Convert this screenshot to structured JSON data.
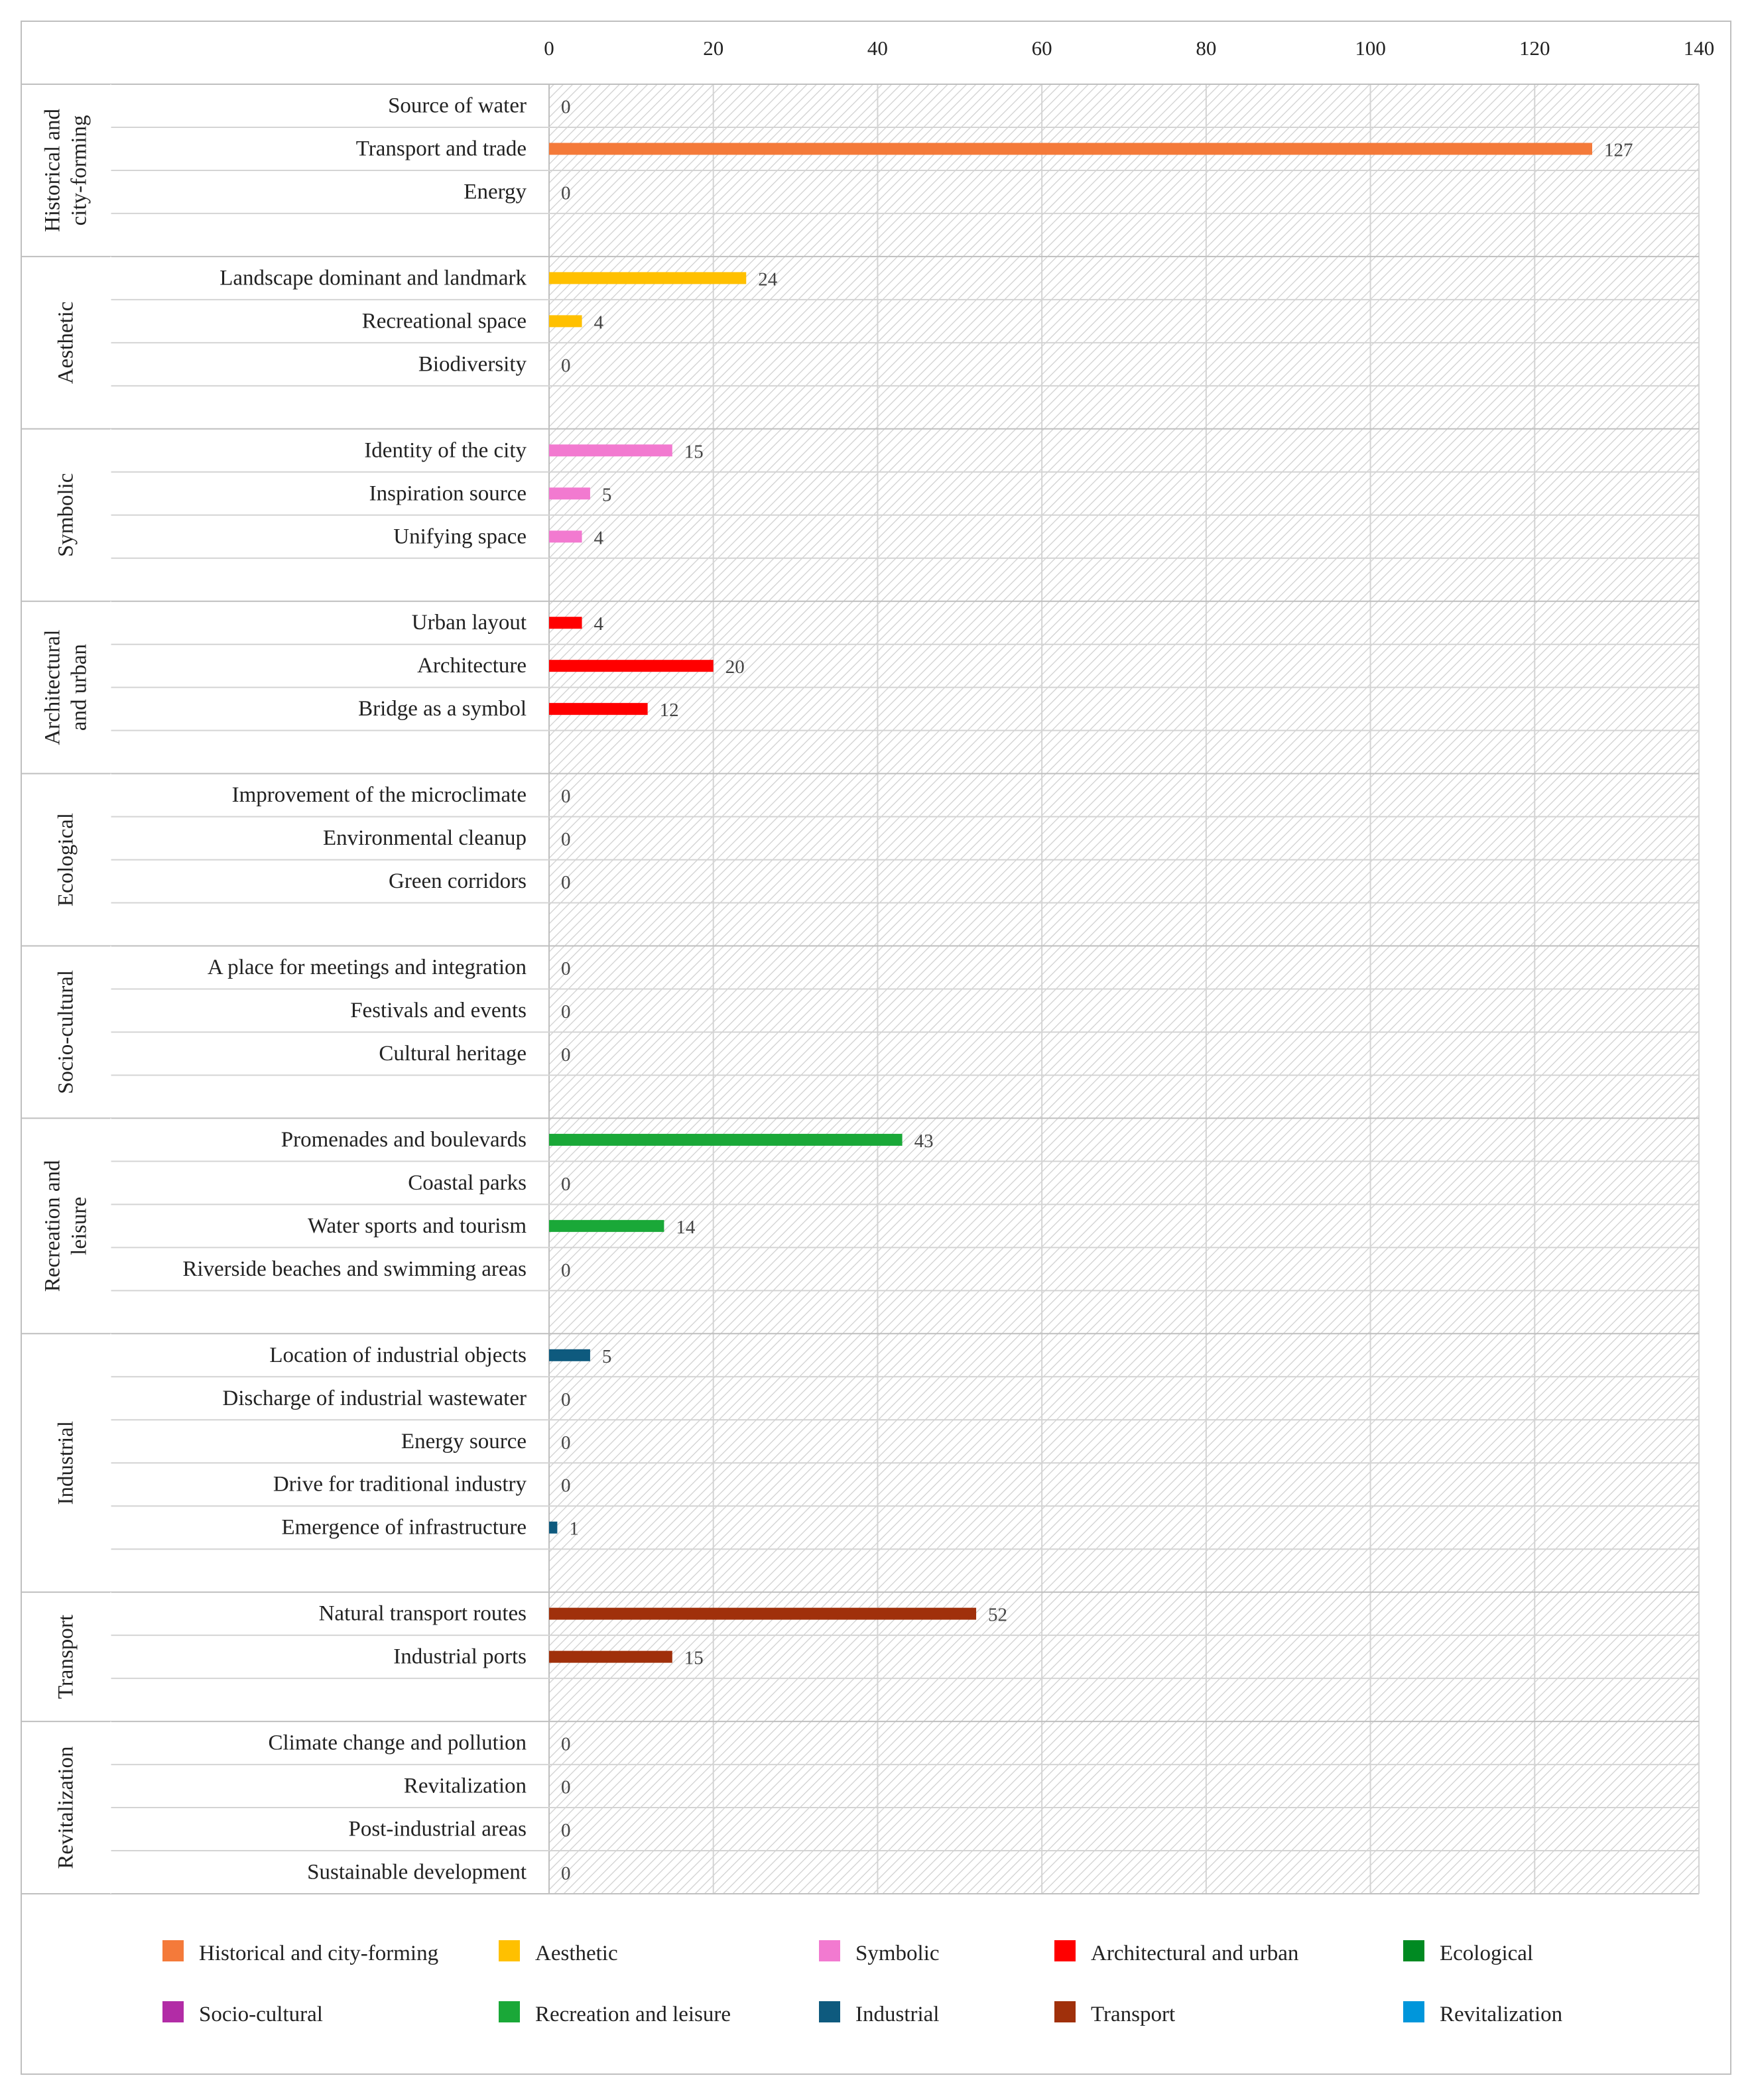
{
  "chart_data": {
    "type": "bar",
    "orientation": "horizontal",
    "title": "",
    "xlabel": "",
    "ylabel": "",
    "xlim": [
      0,
      140
    ],
    "xticks": [
      "0",
      "20",
      "40",
      "60",
      "80",
      "100",
      "120",
      "140"
    ],
    "grid": true,
    "legend_position": "bottom",
    "groups": [
      {
        "name": "Historical and city-forming",
        "label_lines": [
          "Historical and",
          "city-forming"
        ],
        "color": "#F47A3A",
        "items": [
          {
            "label": "Source of water",
            "value": 0
          },
          {
            "label": "Transport and trade",
            "value": 127
          },
          {
            "label": "Energy",
            "value": 0
          }
        ]
      },
      {
        "name": "Aesthetic",
        "label_lines": [
          "Aesthetic"
        ],
        "color": "#FFC000",
        "items": [
          {
            "label": "Landscape dominant and landmark",
            "value": 24
          },
          {
            "label": "Recreational space",
            "value": 4
          },
          {
            "label": "Biodiversity",
            "value": 0
          }
        ]
      },
      {
        "name": "Symbolic",
        "label_lines": [
          "Symbolic"
        ],
        "color": "#F27AD0",
        "items": [
          {
            "label": "Identity of the city",
            "value": 15
          },
          {
            "label": "Inspiration source",
            "value": 5
          },
          {
            "label": "Unifying space",
            "value": 4
          }
        ]
      },
      {
        "name": "Architectural and urban",
        "label_lines": [
          "Architectural",
          "and urban"
        ],
        "color": "#FF0000",
        "items": [
          {
            "label": "Urban layout",
            "value": 4
          },
          {
            "label": "Architecture",
            "value": 20
          },
          {
            "label": "Bridge as a symbol",
            "value": 12
          }
        ]
      },
      {
        "name": "Ecological",
        "label_lines": [
          "Ecological"
        ],
        "color": "#008A22",
        "items": [
          {
            "label": "Improvement of the microclimate",
            "value": 0
          },
          {
            "label": "Environmental cleanup",
            "value": 0
          },
          {
            "label": "Green corridors",
            "value": 0
          }
        ]
      },
      {
        "name": "Socio-cultural",
        "label_lines": [
          "Socio-cultural"
        ],
        "color": "#B22CA6",
        "items": [
          {
            "label": "A place for meetings and integration",
            "value": 0
          },
          {
            "label": "Festivals and events",
            "value": 0
          },
          {
            "label": "Cultural heritage",
            "value": 0
          }
        ]
      },
      {
        "name": "Recreation and leisure",
        "label_lines": [
          "Recreation and",
          "leisure"
        ],
        "color": "#1AA838",
        "items": [
          {
            "label": "Promenades and boulevards",
            "value": 43
          },
          {
            "label": "Coastal parks",
            "value": 0
          },
          {
            "label": "Water sports and tourism",
            "value": 14
          },
          {
            "label": "Riverside beaches and swimming areas",
            "value": 0
          }
        ]
      },
      {
        "name": "Industrial",
        "label_lines": [
          "Industrial"
        ],
        "color": "#0E5A7E",
        "items": [
          {
            "label": "Location of industrial objects",
            "value": 5
          },
          {
            "label": "Discharge of industrial wastewater",
            "value": 0
          },
          {
            "label": "Energy source",
            "value": 0
          },
          {
            "label": "Drive for traditional industry",
            "value": 0
          },
          {
            "label": "Emergence of infrastructure",
            "value": 1
          }
        ]
      },
      {
        "name": "Transport",
        "label_lines": [
          "Transport"
        ],
        "color": "#A0300B",
        "items": [
          {
            "label": "Natural transport routes",
            "value": 52
          },
          {
            "label": "Industrial ports",
            "value": 15
          }
        ]
      },
      {
        "name": "Revitalization",
        "label_lines": [
          "Revitalization"
        ],
        "color": "#0096DB",
        "items": [
          {
            "label": "Climate change and pollution",
            "value": 0
          },
          {
            "label": "Revitalization",
            "value": 0
          },
          {
            "label": "Post-industrial areas",
            "value": 0
          },
          {
            "label": "Sustainable development",
            "value": 0
          }
        ]
      }
    ],
    "legend": [
      {
        "label": "Historical and city-forming",
        "color": "#F47A3A"
      },
      {
        "label": "Aesthetic",
        "color": "#FFC000"
      },
      {
        "label": "Symbolic",
        "color": "#F27AD0"
      },
      {
        "label": "Architectural and urban",
        "color": "#FF0000"
      },
      {
        "label": "Ecological",
        "color": "#008A22"
      },
      {
        "label": "Socio-cultural",
        "color": "#B22CA6"
      },
      {
        "label": "Recreation and leisure",
        "color": "#1AA838"
      },
      {
        "label": "Industrial",
        "color": "#0E5A7E"
      },
      {
        "label": "Transport",
        "color": "#A0300B"
      },
      {
        "label": "Revitalization",
        "color": "#0096DB"
      }
    ]
  }
}
